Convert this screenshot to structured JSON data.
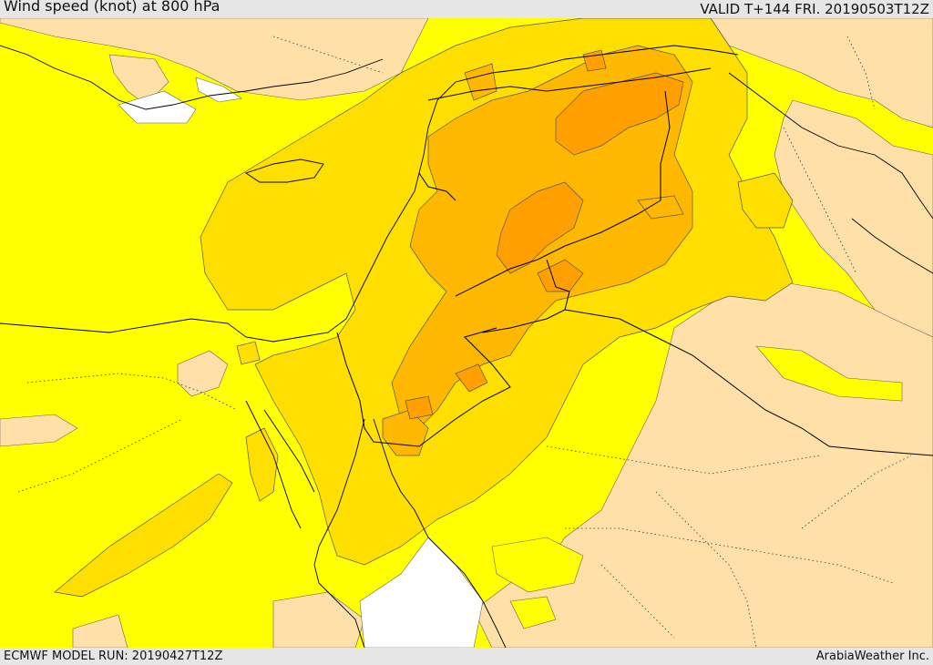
{
  "header": {
    "title": "Wind speed (knot) at 800 hPa",
    "valid": "VALID T+144 FRI. 20190503T12Z"
  },
  "footer": {
    "model_run": "ECMWF MODEL RUN: 20190427T12Z",
    "credit": "ArabiaWeather Inc."
  },
  "colors": {
    "band_low": "#ffffff",
    "band_light": "#ffe0a8",
    "band_base": "#ffff00",
    "band_mid": "#ffdf00",
    "band_high": "#ffb800",
    "band_peak": "#ffa000",
    "coast": "#000000"
  }
}
